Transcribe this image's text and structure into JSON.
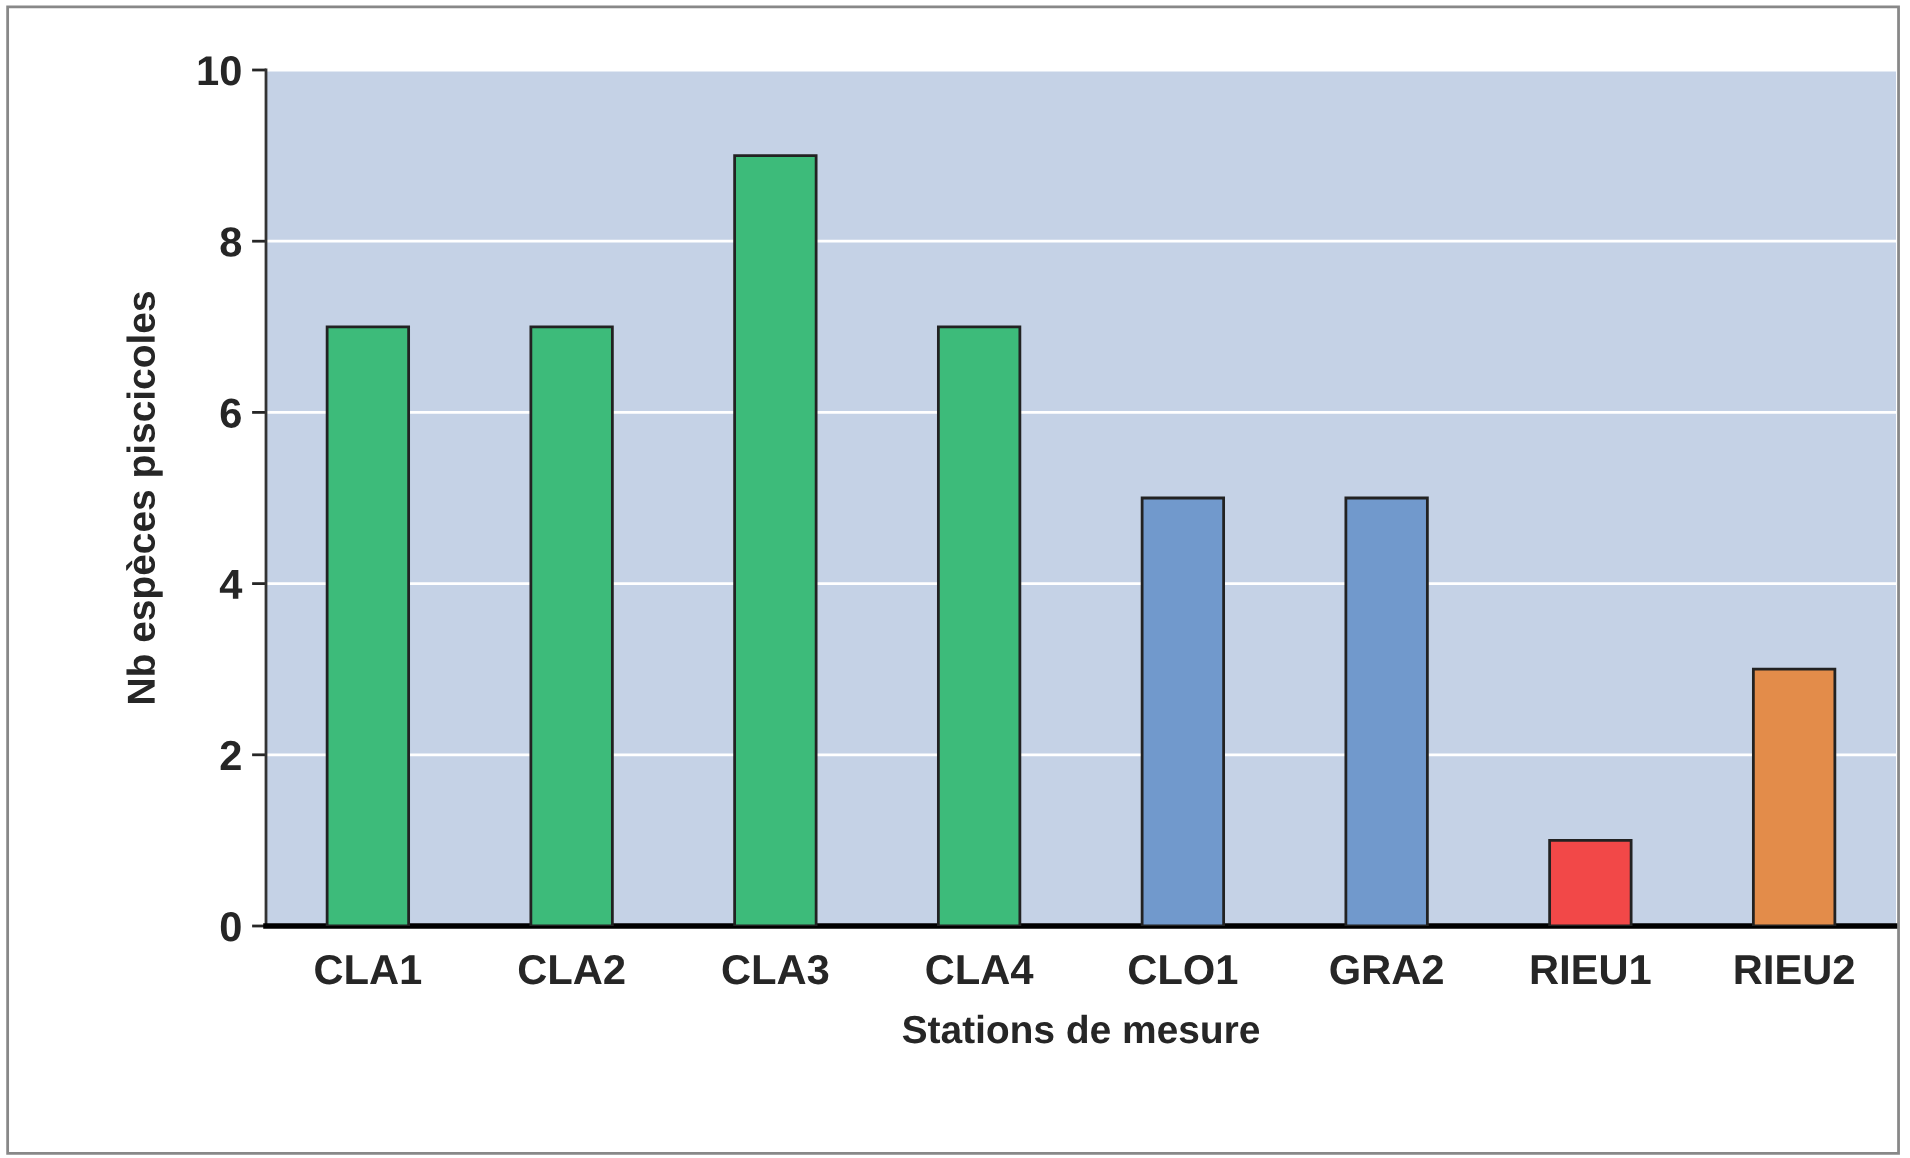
{
  "chart_data": {
    "type": "bar",
    "xlabel": "Stations de mesure",
    "ylabel": "Nb espèces piscicoles",
    "categories": [
      "CLA1",
      "CLA2",
      "CLA3",
      "CLA4",
      "CLO1",
      "GRA2",
      "RIEU1",
      "RIEU2"
    ],
    "values": [
      7,
      7,
      9,
      7,
      5,
      5,
      1,
      3
    ],
    "colors": [
      "#3dbb7a",
      "#3dbb7a",
      "#3dbb7a",
      "#3dbb7a",
      "#7199cc",
      "#7199cc",
      "#f24848",
      "#e38c4a"
    ],
    "ylim": [
      0,
      10
    ],
    "yticks": [
      0,
      2,
      4,
      6,
      8,
      10
    ],
    "grid": "y",
    "legend": false
  }
}
